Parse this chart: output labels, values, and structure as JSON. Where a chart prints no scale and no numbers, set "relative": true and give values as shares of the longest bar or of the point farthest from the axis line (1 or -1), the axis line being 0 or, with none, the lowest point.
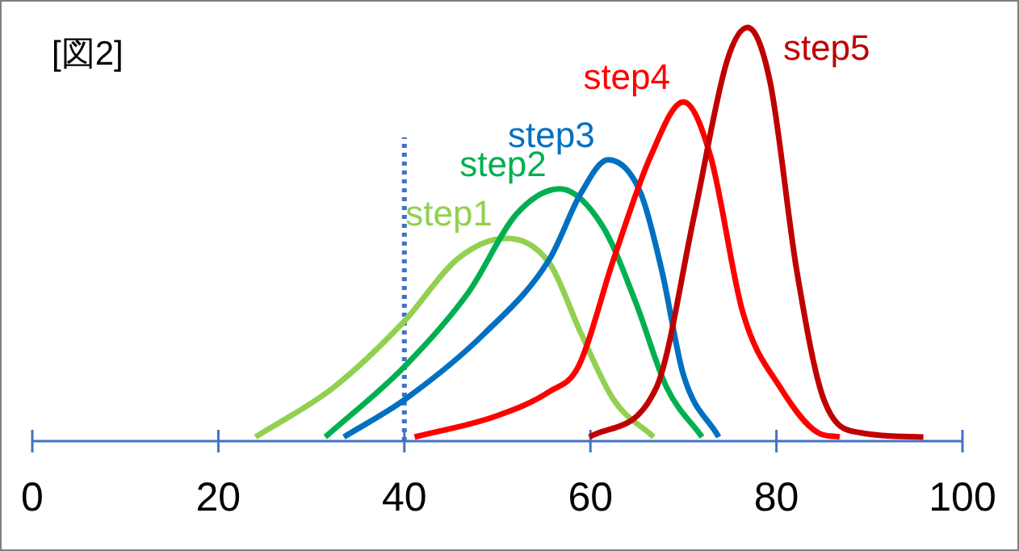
{
  "chart_data": {
    "type": "line",
    "title": "[図2]",
    "relative": true,
    "xlim": [
      0,
      100
    ],
    "xticks": [
      0,
      20,
      40,
      60,
      80,
      100
    ],
    "line_style": "solid",
    "ref_lines": [
      {
        "axis": "x",
        "value": 40,
        "color": "#4472c4",
        "line_style": "dotted"
      }
    ],
    "series": [
      {
        "name": "step1",
        "color": "#92d050",
        "x": [
          24,
          32.4,
          40,
          45.7,
          50.9,
          55.6,
          59,
          62.5,
          66.8
        ],
        "values": [
          0.01,
          0.13,
          0.29,
          0.44,
          0.49,
          0.43,
          0.26,
          0.1,
          0.01
        ]
      },
      {
        "name": "step2",
        "color": "#00b050",
        "x": [
          31.5,
          40,
          46.9,
          52.1,
          56.7,
          61.3,
          64.8,
          68.2,
          72
        ],
        "values": [
          0.01,
          0.18,
          0.36,
          0.55,
          0.61,
          0.52,
          0.34,
          0.13,
          0.01
        ]
      },
      {
        "name": "step3",
        "color": "#0070c0",
        "x": [
          33.5,
          40,
          48.6,
          55.6,
          59,
          61.9,
          65.4,
          67.7,
          70,
          73.8
        ],
        "values": [
          0.01,
          0.1,
          0.26,
          0.44,
          0.6,
          0.68,
          0.6,
          0.41,
          0.16,
          0.01
        ]
      },
      {
        "name": "step4",
        "color": "#ff0000",
        "x": [
          41.1,
          49.8,
          55.6,
          58.7,
          62.5,
          66.5,
          70,
          72.9,
          76.4,
          80.4,
          84.5,
          86.8
        ],
        "values": [
          0.01,
          0.06,
          0.12,
          0.18,
          0.44,
          0.69,
          0.82,
          0.69,
          0.31,
          0.13,
          0.02,
          0.01
        ]
      },
      {
        "name": "step5",
        "color": "#c00000",
        "x": [
          59.9,
          67.1,
          71.2,
          74.7,
          76.9,
          79.3,
          82.2,
          85.1,
          89.1,
          95.8
        ],
        "values": [
          0.01,
          0.13,
          0.55,
          0.92,
          1,
          0.87,
          0.41,
          0.1,
          0.02,
          0.01
        ]
      }
    ]
  }
}
